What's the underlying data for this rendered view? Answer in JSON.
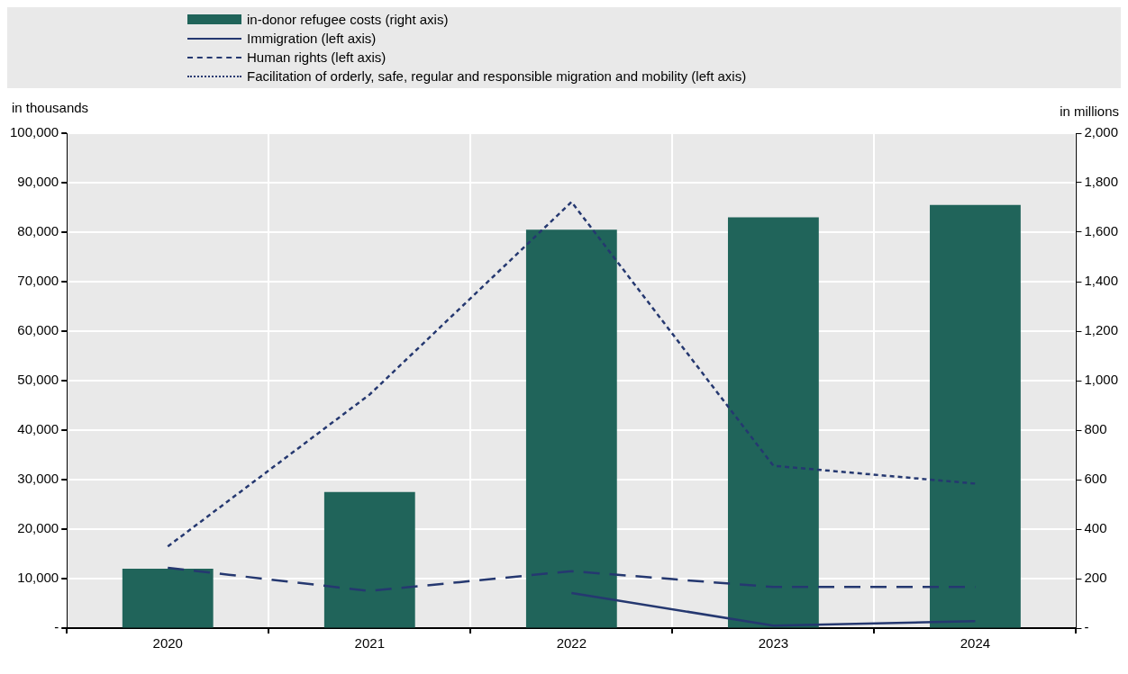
{
  "chart_data": {
    "type": "bar",
    "categories": [
      "2020",
      "2021",
      "2022",
      "2023",
      "2024"
    ],
    "ylabel": "in thousands",
    "y2label": "in millions",
    "ylim": [
      0,
      100000
    ],
    "yticks": [
      {
        "value": 0,
        "label": "-"
      },
      {
        "value": 10000,
        "label": "10,000"
      },
      {
        "value": 20000,
        "label": "20,000"
      },
      {
        "value": 30000,
        "label": "30,000"
      },
      {
        "value": 40000,
        "label": "40,000"
      },
      {
        "value": 50000,
        "label": "50,000"
      },
      {
        "value": 60000,
        "label": "60,000"
      },
      {
        "value": 70000,
        "label": "70,000"
      },
      {
        "value": 80000,
        "label": "80,000"
      },
      {
        "value": 90000,
        "label": "90,000"
      },
      {
        "value": 100000,
        "label": "100,000"
      }
    ],
    "y2lim": [
      0,
      2000
    ],
    "y2ticks": [
      {
        "value": 0,
        "label": "-"
      },
      {
        "value": 200,
        "label": "200"
      },
      {
        "value": 400,
        "label": "400"
      },
      {
        "value": 600,
        "label": "600"
      },
      {
        "value": 800,
        "label": "800"
      },
      {
        "value": 1000,
        "label": "1,000"
      },
      {
        "value": 1200,
        "label": "1,200"
      },
      {
        "value": 1400,
        "label": "1,400"
      },
      {
        "value": 1600,
        "label": "1,600"
      },
      {
        "value": 1800,
        "label": "1,800"
      },
      {
        "value": 2000,
        "label": "2,000"
      }
    ],
    "grid": true,
    "legend": "top",
    "marker": "none",
    "series": [
      {
        "name": "in-donor refugee costs (right axis)",
        "axis": "y2",
        "color": "#20645a",
        "values": [
          240,
          550,
          1610,
          1660,
          1710
        ]
      },
      {
        "name": "Immigration (left axis)",
        "type": "line",
        "color": "#253870",
        "line_style": "solid",
        "values": [
          null,
          null,
          7100,
          500,
          1400
        ]
      },
      {
        "name": "Human rights (left axis)",
        "type": "line",
        "color": "#253870",
        "line_style": "dashed",
        "values": [
          12200,
          7500,
          11500,
          8300,
          8300
        ]
      },
      {
        "name": "Facilitation of orderly, safe, regular and responsible migration and mobility (left axis)",
        "type": "line",
        "color": "#253870",
        "line_style": "dotted",
        "values": [
          16500,
          47200,
          86100,
          32800,
          29200
        ]
      }
    ]
  }
}
